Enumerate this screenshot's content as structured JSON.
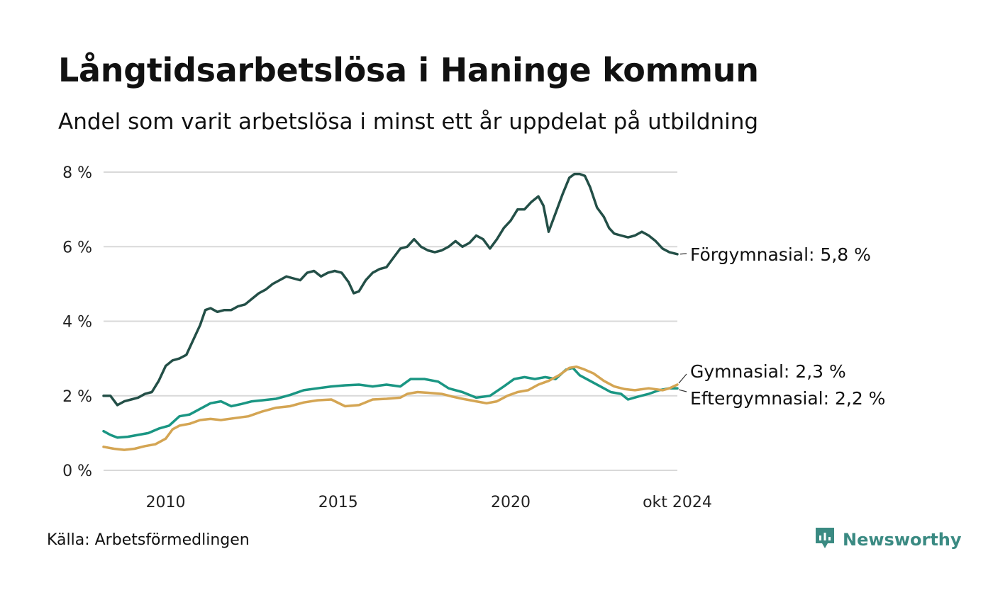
{
  "title": "Långtidsarbetslösa i Haninge kommun",
  "subtitle": "Andel som varit arbetslösa i minst ett år uppdelat på utbildning",
  "source": "Källa: Arbetsförmedlingen",
  "brand": {
    "name": "Newsworthy",
    "icon": "newsworthy-logo-icon",
    "color": "#3a8a82"
  },
  "chart_data": {
    "type": "line",
    "title": "Långtidsarbetslösa i Haninge kommun",
    "xlabel": "",
    "ylabel": "",
    "xlim": [
      2008.2,
      2024.83
    ],
    "ylim": [
      0,
      8
    ],
    "y_ticks": [
      {
        "value": 0,
        "label": "0 %"
      },
      {
        "value": 2,
        "label": "2 %"
      },
      {
        "value": 4,
        "label": "4 %"
      },
      {
        "value": 6,
        "label": "6 %"
      },
      {
        "value": 8,
        "label": "8 %"
      }
    ],
    "x_ticks": [
      {
        "value": 2010,
        "label": "2010"
      },
      {
        "value": 2015,
        "label": "2015"
      },
      {
        "value": 2020,
        "label": "2020"
      },
      {
        "value": 2024.83,
        "label": "okt 2024"
      }
    ],
    "grid": true,
    "series": [
      {
        "name": "Förgymnasial",
        "end_label": "Förgymnasial: 5,8 %",
        "color": "#234f47",
        "points": [
          [
            2008.2,
            2.0
          ],
          [
            2008.4,
            2.0
          ],
          [
            2008.6,
            1.75
          ],
          [
            2008.8,
            1.85
          ],
          [
            2009.0,
            1.9
          ],
          [
            2009.2,
            1.95
          ],
          [
            2009.4,
            2.05
          ],
          [
            2009.6,
            2.1
          ],
          [
            2009.8,
            2.4
          ],
          [
            2010.0,
            2.8
          ],
          [
            2010.2,
            2.95
          ],
          [
            2010.4,
            3.0
          ],
          [
            2010.6,
            3.1
          ],
          [
            2010.8,
            3.5
          ],
          [
            2011.0,
            3.9
          ],
          [
            2011.15,
            4.3
          ],
          [
            2011.3,
            4.35
          ],
          [
            2011.5,
            4.25
          ],
          [
            2011.7,
            4.3
          ],
          [
            2011.9,
            4.3
          ],
          [
            2012.1,
            4.4
          ],
          [
            2012.3,
            4.45
          ],
          [
            2012.5,
            4.6
          ],
          [
            2012.7,
            4.75
          ],
          [
            2012.9,
            4.85
          ],
          [
            2013.1,
            5.0
          ],
          [
            2013.3,
            5.1
          ],
          [
            2013.5,
            5.2
          ],
          [
            2013.7,
            5.15
          ],
          [
            2013.9,
            5.1
          ],
          [
            2014.1,
            5.3
          ],
          [
            2014.3,
            5.35
          ],
          [
            2014.5,
            5.2
          ],
          [
            2014.7,
            5.3
          ],
          [
            2014.9,
            5.35
          ],
          [
            2015.1,
            5.3
          ],
          [
            2015.3,
            5.05
          ],
          [
            2015.45,
            4.75
          ],
          [
            2015.6,
            4.8
          ],
          [
            2015.8,
            5.1
          ],
          [
            2016.0,
            5.3
          ],
          [
            2016.2,
            5.4
          ],
          [
            2016.4,
            5.45
          ],
          [
            2016.6,
            5.7
          ],
          [
            2016.8,
            5.95
          ],
          [
            2017.0,
            6.0
          ],
          [
            2017.2,
            6.2
          ],
          [
            2017.4,
            6.0
          ],
          [
            2017.6,
            5.9
          ],
          [
            2017.8,
            5.85
          ],
          [
            2018.0,
            5.9
          ],
          [
            2018.2,
            6.0
          ],
          [
            2018.4,
            6.15
          ],
          [
            2018.6,
            6.0
          ],
          [
            2018.8,
            6.1
          ],
          [
            2019.0,
            6.3
          ],
          [
            2019.2,
            6.2
          ],
          [
            2019.4,
            5.95
          ],
          [
            2019.6,
            6.2
          ],
          [
            2019.8,
            6.5
          ],
          [
            2020.0,
            6.7
          ],
          [
            2020.2,
            7.0
          ],
          [
            2020.4,
            7.0
          ],
          [
            2020.6,
            7.2
          ],
          [
            2020.8,
            7.35
          ],
          [
            2020.95,
            7.1
          ],
          [
            2021.1,
            6.4
          ],
          [
            2021.3,
            6.9
          ],
          [
            2021.5,
            7.4
          ],
          [
            2021.7,
            7.85
          ],
          [
            2021.85,
            7.95
          ],
          [
            2022.0,
            7.95
          ],
          [
            2022.15,
            7.9
          ],
          [
            2022.3,
            7.6
          ],
          [
            2022.5,
            7.05
          ],
          [
            2022.7,
            6.8
          ],
          [
            2022.85,
            6.5
          ],
          [
            2023.0,
            6.35
          ],
          [
            2023.2,
            6.3
          ],
          [
            2023.4,
            6.25
          ],
          [
            2023.6,
            6.3
          ],
          [
            2023.8,
            6.4
          ],
          [
            2024.0,
            6.3
          ],
          [
            2024.2,
            6.15
          ],
          [
            2024.4,
            5.95
          ],
          [
            2024.6,
            5.85
          ],
          [
            2024.83,
            5.8
          ]
        ]
      },
      {
        "name": "Gymnasial",
        "end_label": "Gymnasial: 2,3 %",
        "color": "#d4a553",
        "points": [
          [
            2008.2,
            0.63
          ],
          [
            2008.5,
            0.58
          ],
          [
            2008.8,
            0.55
          ],
          [
            2009.1,
            0.58
          ],
          [
            2009.4,
            0.65
          ],
          [
            2009.7,
            0.7
          ],
          [
            2010.0,
            0.85
          ],
          [
            2010.2,
            1.1
          ],
          [
            2010.4,
            1.2
          ],
          [
            2010.7,
            1.25
          ],
          [
            2011.0,
            1.35
          ],
          [
            2011.3,
            1.38
          ],
          [
            2011.6,
            1.35
          ],
          [
            2012.0,
            1.4
          ],
          [
            2012.4,
            1.45
          ],
          [
            2012.8,
            1.58
          ],
          [
            2013.2,
            1.68
          ],
          [
            2013.6,
            1.72
          ],
          [
            2014.0,
            1.82
          ],
          [
            2014.4,
            1.88
          ],
          [
            2014.8,
            1.9
          ],
          [
            2015.2,
            1.72
          ],
          [
            2015.6,
            1.75
          ],
          [
            2016.0,
            1.9
          ],
          [
            2016.4,
            1.92
          ],
          [
            2016.8,
            1.95
          ],
          [
            2017.0,
            2.05
          ],
          [
            2017.3,
            2.1
          ],
          [
            2017.6,
            2.08
          ],
          [
            2018.0,
            2.05
          ],
          [
            2018.3,
            1.98
          ],
          [
            2018.6,
            1.92
          ],
          [
            2019.0,
            1.85
          ],
          [
            2019.3,
            1.8
          ],
          [
            2019.6,
            1.85
          ],
          [
            2019.9,
            2.0
          ],
          [
            2020.2,
            2.1
          ],
          [
            2020.5,
            2.15
          ],
          [
            2020.8,
            2.3
          ],
          [
            2021.1,
            2.4
          ],
          [
            2021.4,
            2.55
          ],
          [
            2021.7,
            2.75
          ],
          [
            2021.9,
            2.78
          ],
          [
            2022.1,
            2.72
          ],
          [
            2022.4,
            2.6
          ],
          [
            2022.7,
            2.4
          ],
          [
            2023.0,
            2.25
          ],
          [
            2023.3,
            2.18
          ],
          [
            2023.6,
            2.15
          ],
          [
            2024.0,
            2.2
          ],
          [
            2024.4,
            2.15
          ],
          [
            2024.6,
            2.2
          ],
          [
            2024.83,
            2.3
          ]
        ]
      },
      {
        "name": "Eftergymnasial",
        "end_label": "Eftergymnasial: 2,2 %",
        "color": "#1a9683",
        "points": [
          [
            2008.2,
            1.05
          ],
          [
            2008.4,
            0.95
          ],
          [
            2008.6,
            0.88
          ],
          [
            2008.9,
            0.9
          ],
          [
            2009.2,
            0.95
          ],
          [
            2009.5,
            1.0
          ],
          [
            2009.8,
            1.12
          ],
          [
            2010.1,
            1.2
          ],
          [
            2010.4,
            1.45
          ],
          [
            2010.7,
            1.5
          ],
          [
            2011.0,
            1.65
          ],
          [
            2011.3,
            1.8
          ],
          [
            2011.6,
            1.85
          ],
          [
            2011.9,
            1.72
          ],
          [
            2012.2,
            1.78
          ],
          [
            2012.5,
            1.85
          ],
          [
            2012.8,
            1.88
          ],
          [
            2013.2,
            1.92
          ],
          [
            2013.6,
            2.02
          ],
          [
            2014.0,
            2.15
          ],
          [
            2014.4,
            2.2
          ],
          [
            2014.8,
            2.25
          ],
          [
            2015.2,
            2.28
          ],
          [
            2015.6,
            2.3
          ],
          [
            2016.0,
            2.25
          ],
          [
            2016.4,
            2.3
          ],
          [
            2016.8,
            2.25
          ],
          [
            2017.1,
            2.45
          ],
          [
            2017.5,
            2.45
          ],
          [
            2017.9,
            2.38
          ],
          [
            2018.2,
            2.2
          ],
          [
            2018.6,
            2.1
          ],
          [
            2019.0,
            1.95
          ],
          [
            2019.4,
            2.0
          ],
          [
            2019.8,
            2.25
          ],
          [
            2020.1,
            2.45
          ],
          [
            2020.4,
            2.5
          ],
          [
            2020.7,
            2.45
          ],
          [
            2021.0,
            2.5
          ],
          [
            2021.3,
            2.45
          ],
          [
            2021.6,
            2.7
          ],
          [
            2021.8,
            2.75
          ],
          [
            2022.0,
            2.55
          ],
          [
            2022.3,
            2.4
          ],
          [
            2022.6,
            2.25
          ],
          [
            2022.9,
            2.1
          ],
          [
            2023.2,
            2.05
          ],
          [
            2023.4,
            1.9
          ],
          [
            2023.7,
            1.98
          ],
          [
            2024.0,
            2.05
          ],
          [
            2024.3,
            2.15
          ],
          [
            2024.6,
            2.2
          ],
          [
            2024.83,
            2.2
          ]
        ]
      }
    ]
  }
}
